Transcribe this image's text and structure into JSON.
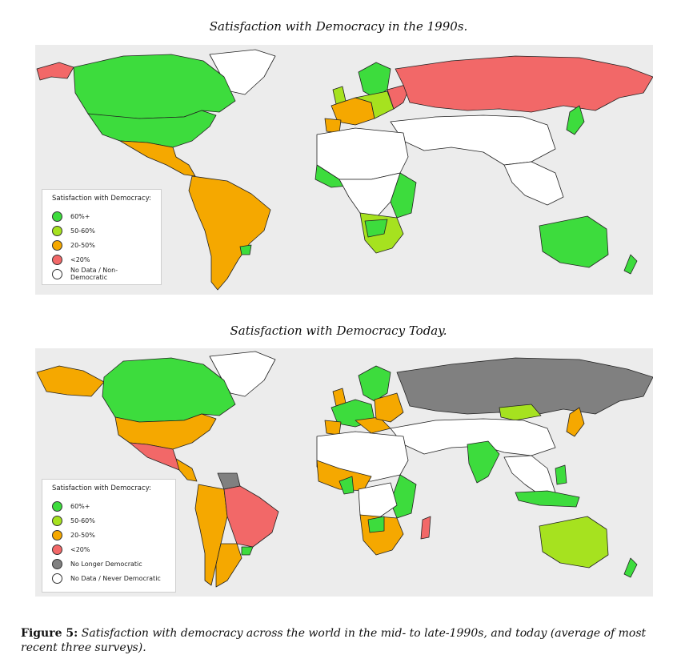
{
  "colors": {
    "green": "#3ddc3d",
    "light_green": "#a6e21f",
    "orange": "#f5a800",
    "red": "#f26868",
    "grey": "#808080",
    "white": "#ffffff",
    "ocean": "#ececec"
  },
  "maps": [
    {
      "title": "Satisfaction with Democracy in the 1990s.",
      "legend": {
        "title": "Satisfaction with Democracy:",
        "items": [
          {
            "label": "60%+",
            "color": "#3ddc3d"
          },
          {
            "label": "50-60%",
            "color": "#a6e21f"
          },
          {
            "label": "20-50%",
            "color": "#f5a800"
          },
          {
            "label": "<20%",
            "color": "#f26868"
          },
          {
            "label": "No Data / Non-Democratic",
            "color": "#ffffff"
          }
        ]
      }
    },
    {
      "title": "Satisfaction with Democracy Today.",
      "legend": {
        "title": "Satisfaction with Democracy:",
        "items": [
          {
            "label": "60%+",
            "color": "#3ddc3d"
          },
          {
            "label": "50-60%",
            "color": "#a6e21f"
          },
          {
            "label": "20-50%",
            "color": "#f5a800"
          },
          {
            "label": "<20%",
            "color": "#f26868"
          },
          {
            "label": "No Longer Democratic",
            "color": "#808080"
          },
          {
            "label": "No Data / Never Democratic",
            "color": "#ffffff"
          }
        ]
      }
    }
  ],
  "caption": {
    "label": "Figure 5:",
    "text": "Satisfaction with democracy across the world in the mid- to late-1990s, and today (average of most recent three surveys)."
  }
}
